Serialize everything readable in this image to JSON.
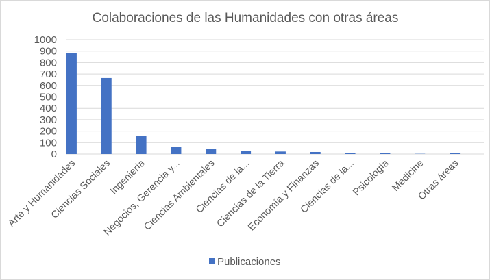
{
  "chart_data": {
    "type": "bar",
    "title": "Colaboraciones de las Humanidades con otras áreas",
    "categories": [
      "Arte y Humanidades",
      "Ciencias Sociales",
      "Ingeniería",
      "Negocios, Gerencia y...",
      "Ciencias Ambientales",
      "Ciencias de la...",
      "Ciencias de la Tierra",
      "Economía y Finanzas",
      "Ciencias de la...",
      "Psicología",
      "Medicine",
      "Otras áreas"
    ],
    "series": [
      {
        "name": "Publicaciones",
        "color": "#4472c4",
        "values": [
          885,
          665,
          158,
          65,
          45,
          28,
          22,
          18,
          10,
          8,
          2,
          9
        ]
      }
    ],
    "ylim": [
      0,
      1000
    ],
    "yticks": [
      "0",
      "100",
      "200",
      "300",
      "400",
      "500",
      "600",
      "700",
      "800",
      "900",
      "1000"
    ],
    "grid": true,
    "legend": "bottom"
  }
}
